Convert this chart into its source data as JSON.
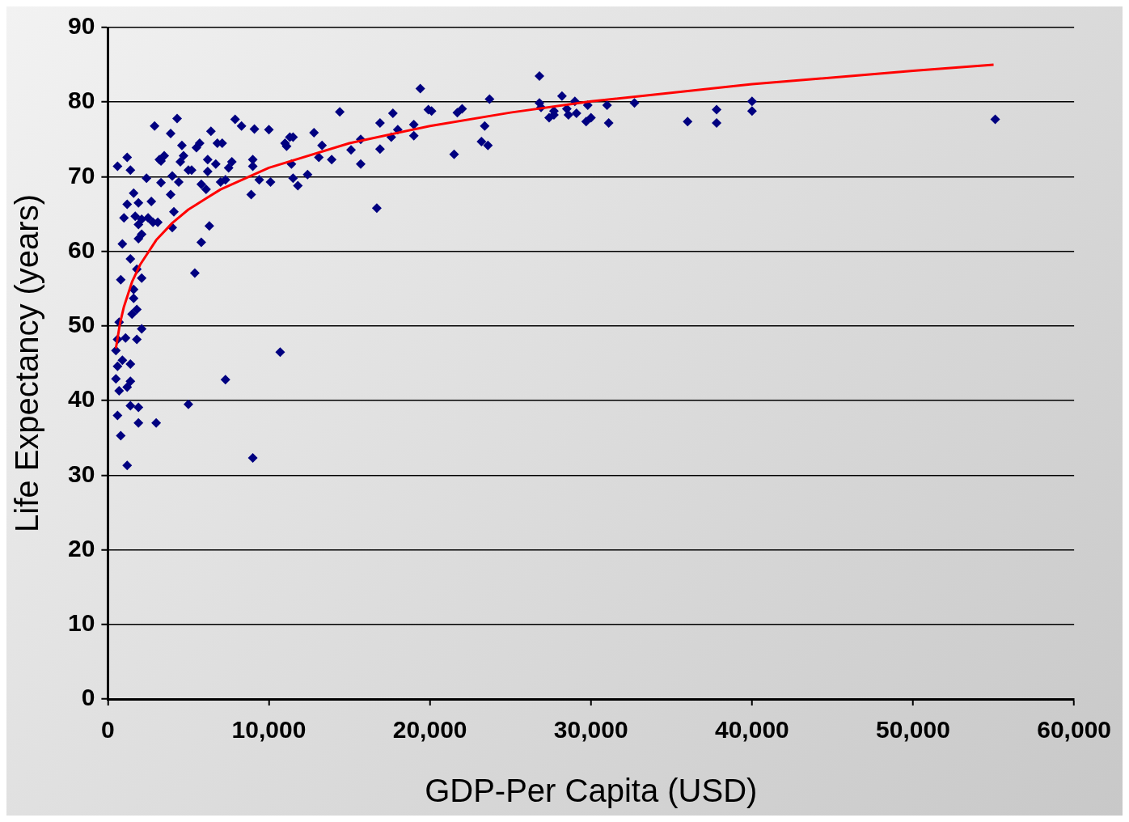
{
  "chart_data": {
    "type": "scatter",
    "xlabel": "GDP-Per Capita (USD)",
    "ylabel": "Life Expectancy (years)",
    "xlim": [
      0,
      60000
    ],
    "ylim": [
      0,
      90
    ],
    "xticks": [
      0,
      {
        "value": 10000,
        "label": "10,000"
      },
      {
        "value": 20000,
        "label": "20,000"
      },
      {
        "value": 30000,
        "label": "30,000"
      },
      {
        "value": 40000,
        "label": "40,000"
      },
      {
        "value": 50000,
        "label": "50,000"
      },
      {
        "value": 60000,
        "label": "60,000"
      }
    ],
    "yticks": [
      0,
      10,
      20,
      30,
      40,
      50,
      60,
      70,
      80,
      90
    ],
    "grid": "y",
    "legend": false,
    "marker": "diamond",
    "series": [
      {
        "type": "scatter",
        "color": "#000080",
        "x": [
          600,
          1200,
          1400,
          1600,
          1200,
          1000,
          1700,
          1900,
          2100,
          2500,
          2400,
          2900,
          3200,
          3500,
          3900,
          4300,
          4600,
          4700,
          4000,
          4400,
          5000,
          5500,
          3300,
          3900,
          4100,
          4000,
          2800,
          2700,
          1900,
          2100,
          900,
          1400,
          1800,
          2100,
          800,
          1600,
          1600,
          1800,
          1500,
          700,
          2100,
          600,
          1800,
          1100,
          500,
          900,
          1400,
          600,
          500,
          1400,
          700,
          1200,
          1400,
          1900,
          600,
          1900,
          3000,
          800,
          1200,
          5000,
          7300,
          9000,
          10700,
          5400,
          5800,
          6300,
          6400,
          5800,
          6100,
          6200,
          6200,
          6700,
          6800,
          7100,
          7000,
          7500,
          7700,
          7900,
          8300,
          9100,
          9000,
          9000,
          8900,
          9400,
          10100,
          10000,
          11000,
          11100,
          11300,
          11500,
          11400,
          11500,
          11800,
          12400,
          12800,
          13100,
          13300,
          13900,
          14400,
          15100,
          15700,
          15700,
          16700,
          16900,
          16900,
          17600,
          17700,
          18000,
          19000,
          19000,
          19400,
          19900,
          20100,
          21500,
          21700,
          22000,
          23200,
          23400,
          23600,
          23700,
          26800,
          26800,
          26900,
          27400,
          27700,
          27700,
          28200,
          28500,
          28600,
          29000,
          29100,
          29700,
          30000,
          29800,
          31000,
          31100,
          32700,
          36000,
          37800,
          37800,
          40000,
          40000,
          55100,
          3300,
          4500,
          5200,
          5700,
          7300,
          1900,
          3100
        ],
        "values": [
          71.4,
          72.6,
          70.9,
          67.8,
          66.3,
          64.5,
          64.7,
          63.6,
          64.3,
          64.5,
          69.8,
          76.8,
          72.3,
          72.8,
          75.8,
          77.8,
          74.2,
          72.8,
          70.1,
          69.3,
          70.9,
          73.9,
          69.2,
          67.6,
          65.3,
          63.2,
          63.9,
          66.7,
          61.7,
          62.3,
          61.0,
          59.0,
          57.6,
          56.4,
          56.2,
          54.9,
          53.7,
          52.2,
          51.6,
          50.5,
          49.6,
          48.2,
          48.2,
          48.4,
          46.7,
          45.4,
          44.9,
          44.6,
          42.9,
          42.6,
          41.3,
          41.8,
          39.3,
          39.1,
          38.0,
          37.0,
          37.0,
          35.3,
          31.3,
          39.5,
          42.8,
          32.3,
          46.5,
          57.1,
          61.2,
          63.4,
          76.1,
          69.0,
          68.3,
          70.7,
          72.3,
          71.7,
          74.5,
          74.5,
          69.3,
          71.2,
          72.0,
          77.7,
          76.8,
          76.4,
          72.3,
          71.4,
          67.6,
          69.6,
          69.3,
          76.3,
          74.5,
          74.1,
          75.3,
          75.3,
          71.7,
          69.8,
          68.8,
          70.3,
          75.9,
          72.6,
          74.2,
          72.3,
          78.7,
          73.6,
          75.0,
          71.7,
          65.8,
          77.2,
          73.7,
          75.3,
          78.5,
          76.3,
          75.5,
          77.0,
          81.8,
          79.0,
          78.8,
          73.0,
          78.6,
          79.1,
          74.7,
          76.8,
          74.2,
          80.4,
          83.5,
          79.9,
          79.3,
          77.9,
          78.8,
          78.3,
          80.8,
          79.1,
          78.3,
          80.1,
          78.5,
          77.4,
          77.9,
          79.6,
          79.6,
          77.2,
          79.9,
          77.4,
          79.0,
          77.2,
          80.1,
          78.8,
          77.7,
          72.1,
          72.0,
          70.9,
          74.5,
          69.6,
          66.5,
          63.9
        ]
      },
      {
        "type": "line",
        "color": "#ff0000",
        "marker": "none",
        "x": [
          500,
          750,
          1000,
          1500,
          2000,
          3000,
          4000,
          5000,
          7000,
          10000,
          15000,
          20000,
          25000,
          30000,
          40000,
          50000,
          55000
        ],
        "values": [
          47.0,
          50.3,
          52.6,
          55.9,
          58.2,
          61.5,
          63.8,
          65.6,
          68.3,
          71.2,
          74.5,
          76.8,
          78.6,
          80.1,
          82.4,
          84.2,
          85.0
        ]
      }
    ]
  }
}
